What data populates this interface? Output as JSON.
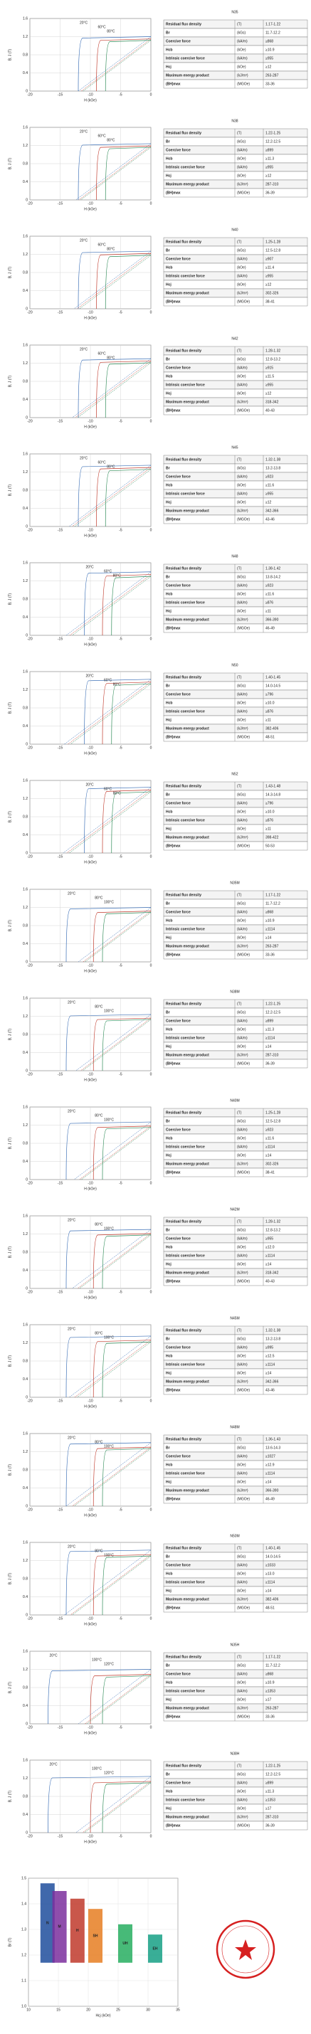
{
  "demag_axes": {
    "xlim": [
      -20,
      0
    ],
    "xticks": [
      -20,
      -15,
      -10,
      -5,
      0
    ],
    "ylim": [
      0,
      1.6
    ],
    "yticks": [
      0,
      0.4,
      0.8,
      1.2,
      1.6
    ],
    "xlabel": "H (kOe)",
    "ylabel": "B, J (T)"
  },
  "table_rows": [
    {
      "label": "Residual flux density",
      "unit": "(T)"
    },
    {
      "label": "Br",
      "unit": "(kGs)"
    },
    {
      "label": "Coercive force",
      "unit": "(kA/m)"
    },
    {
      "label": "Hcb",
      "unit": "(kOe)"
    },
    {
      "label": "Intrinsic coercive force",
      "unit": "(kA/m)"
    },
    {
      "label": "Hcj",
      "unit": "(kOe)"
    },
    {
      "label": "Maximum energy product",
      "unit": "(kJ/m³)"
    },
    {
      "label": "(BH)max",
      "unit": "(MGOe)"
    }
  ],
  "panels": [
    {
      "grade": "N35",
      "values": [
        "1.17-1.22",
        "11.7-12.2",
        "≥868",
        "≥10.9",
        "≥955",
        "≥12",
        "263-287",
        "33-36"
      ],
      "curves": [
        {
          "name": "20°C",
          "br": 1.2,
          "hcj": 12
        },
        {
          "name": "60°C",
          "br": 1.15,
          "hcj": 9
        },
        {
          "name": "80°C",
          "br": 1.12,
          "hcj": 7.5
        }
      ]
    },
    {
      "grade": "N38",
      "values": [
        "1.22-1.25",
        "12.2-12.5",
        "≥899",
        "≥11.3",
        "≥955",
        "≥12",
        "287-310",
        "36-39"
      ],
      "curves": [
        {
          "name": "20°C",
          "br": 1.24,
          "hcj": 12
        },
        {
          "name": "60°C",
          "br": 1.19,
          "hcj": 9
        },
        {
          "name": "80°C",
          "br": 1.16,
          "hcj": 7.5
        }
      ]
    },
    {
      "grade": "N40",
      "values": [
        "1.25-1.28",
        "12.5-12.8",
        "≥907",
        "≥11.4",
        "≥955",
        "≥12",
        "302-326",
        "38-41"
      ],
      "curves": [
        {
          "name": "20°C",
          "br": 1.27,
          "hcj": 12
        },
        {
          "name": "60°C",
          "br": 1.22,
          "hcj": 9
        },
        {
          "name": "80°C",
          "br": 1.18,
          "hcj": 7.5
        }
      ]
    },
    {
      "grade": "N42",
      "values": [
        "1.28-1.32",
        "12.8-13.2",
        "≥915",
        "≥11.5",
        "≥955",
        "≥12",
        "318-342",
        "40-43"
      ],
      "curves": [
        {
          "name": "20°C",
          "br": 1.3,
          "hcj": 12
        },
        {
          "name": "60°C",
          "br": 1.25,
          "hcj": 9
        },
        {
          "name": "80°C",
          "br": 1.21,
          "hcj": 7.5
        }
      ]
    },
    {
      "grade": "N45",
      "values": [
        "1.32-1.38",
        "13.2-13.8",
        "≥923",
        "≥11.6",
        "≥955",
        "≥12",
        "342-366",
        "43-46"
      ],
      "curves": [
        {
          "name": "20°C",
          "br": 1.35,
          "hcj": 12
        },
        {
          "name": "60°C",
          "br": 1.3,
          "hcj": 9
        },
        {
          "name": "80°C",
          "br": 1.26,
          "hcj": 7.5
        }
      ]
    },
    {
      "grade": "N48",
      "values": [
        "1.38-1.42",
        "13.8-14.2",
        "≥923",
        "≥11.6",
        "≥876",
        "≥11",
        "366-390",
        "46-49"
      ],
      "curves": [
        {
          "name": "20°C",
          "br": 1.4,
          "hcj": 11
        },
        {
          "name": "60°C",
          "br": 1.34,
          "hcj": 8
        },
        {
          "name": "80°C",
          "br": 1.3,
          "hcj": 6.5
        }
      ]
    },
    {
      "grade": "N50",
      "values": [
        "1.40-1.45",
        "14.0-14.5",
        "≥796",
        "≥10.0",
        "≥876",
        "≥11",
        "382-406",
        "48-51"
      ],
      "curves": [
        {
          "name": "20°C",
          "br": 1.43,
          "hcj": 11
        },
        {
          "name": "60°C",
          "br": 1.37,
          "hcj": 8
        },
        {
          "name": "80°C",
          "br": 1.33,
          "hcj": 6.5
        }
      ]
    },
    {
      "grade": "N52",
      "values": [
        "1.43-1.48",
        "14.3-14.8",
        "≥796",
        "≥10.0",
        "≥876",
        "≥11",
        "398-422",
        "50-53"
      ],
      "curves": [
        {
          "name": "20°C",
          "br": 1.45,
          "hcj": 11
        },
        {
          "name": "60°C",
          "br": 1.39,
          "hcj": 8
        },
        {
          "name": "80°C",
          "br": 1.35,
          "hcj": 6.5
        }
      ]
    },
    {
      "grade": "N35M",
      "values": [
        "1.17-1.22",
        "11.7-12.2",
        "≥868",
        "≥10.9",
        "≥1114",
        "≥14",
        "263-287",
        "33-36"
      ],
      "curves": [
        {
          "name": "20°C",
          "br": 1.2,
          "hcj": 14
        },
        {
          "name": "80°C",
          "br": 1.12,
          "hcj": 9.5
        },
        {
          "name": "100°C",
          "br": 1.09,
          "hcj": 8
        }
      ]
    },
    {
      "grade": "N38M",
      "values": [
        "1.22-1.25",
        "12.2-12.5",
        "≥899",
        "≥11.3",
        "≥1114",
        "≥14",
        "287-310",
        "36-39"
      ],
      "curves": [
        {
          "name": "20°C",
          "br": 1.24,
          "hcj": 14
        },
        {
          "name": "80°C",
          "br": 1.16,
          "hcj": 9.5
        },
        {
          "name": "100°C",
          "br": 1.13,
          "hcj": 8
        }
      ]
    },
    {
      "grade": "N40M",
      "values": [
        "1.25-1.28",
        "12.5-12.8",
        "≥923",
        "≥11.6",
        "≥1114",
        "≥14",
        "302-326",
        "38-41"
      ],
      "curves": [
        {
          "name": "20°C",
          "br": 1.27,
          "hcj": 14
        },
        {
          "name": "80°C",
          "br": 1.18,
          "hcj": 9.5
        },
        {
          "name": "100°C",
          "br": 1.15,
          "hcj": 8
        }
      ]
    },
    {
      "grade": "N42M",
      "values": [
        "1.28-1.32",
        "12.8-13.2",
        "≥955",
        "≥12.0",
        "≥1114",
        "≥14",
        "318-342",
        "40-43"
      ],
      "curves": [
        {
          "name": "20°C",
          "br": 1.3,
          "hcj": 14
        },
        {
          "name": "80°C",
          "br": 1.21,
          "hcj": 9.5
        },
        {
          "name": "100°C",
          "br": 1.18,
          "hcj": 8
        }
      ]
    },
    {
      "grade": "N45M",
      "values": [
        "1.32-1.38",
        "13.2-13.8",
        "≥995",
        "≥12.5",
        "≥1114",
        "≥14",
        "342-366",
        "43-46"
      ],
      "curves": [
        {
          "name": "20°C",
          "br": 1.35,
          "hcj": 14
        },
        {
          "name": "80°C",
          "br": 1.26,
          "hcj": 9.5
        },
        {
          "name": "100°C",
          "br": 1.22,
          "hcj": 8
        }
      ]
    },
    {
      "grade": "N48M",
      "values": [
        "1.36-1.43",
        "13.6-14.3",
        "≥1027",
        "≥12.9",
        "≥1114",
        "≥14",
        "366-390",
        "46-49"
      ],
      "curves": [
        {
          "name": "20°C",
          "br": 1.4,
          "hcj": 14
        },
        {
          "name": "80°C",
          "br": 1.3,
          "hcj": 9.5
        },
        {
          "name": "100°C",
          "br": 1.27,
          "hcj": 8
        }
      ]
    },
    {
      "grade": "N50M",
      "values": [
        "1.40-1.45",
        "14.0-14.5",
        "≥1033",
        "≥13.0",
        "≥1114",
        "≥14",
        "382-406",
        "48-51"
      ],
      "curves": [
        {
          "name": "20°C",
          "br": 1.43,
          "hcj": 14
        },
        {
          "name": "80°C",
          "br": 1.33,
          "hcj": 9.5
        },
        {
          "name": "100°C",
          "br": 1.3,
          "hcj": 8
        }
      ]
    },
    {
      "grade": "N35H",
      "values": [
        "1.17-1.22",
        "11.7-12.2",
        "≥868",
        "≥10.9",
        "≥1353",
        "≥17",
        "263-287",
        "33-36"
      ],
      "curves": [
        {
          "name": "20°C",
          "br": 1.2,
          "hcj": 17
        },
        {
          "name": "100°C",
          "br": 1.09,
          "hcj": 10
        },
        {
          "name": "120°C",
          "br": 1.06,
          "hcj": 8
        }
      ]
    },
    {
      "grade": "N38H",
      "values": [
        "1.22-1.25",
        "12.2-12.5",
        "≥899",
        "≥11.3",
        "≥1353",
        "≥17",
        "287-310",
        "36-39"
      ],
      "curves": [
        {
          "name": "20°C",
          "br": 1.24,
          "hcj": 17
        },
        {
          "name": "100°C",
          "br": 1.13,
          "hcj": 10
        },
        {
          "name": "120°C",
          "br": 1.1,
          "hcj": 8
        }
      ]
    }
  ],
  "grade_map": {
    "xlabel": "Hcj (kOe)",
    "ylabel": "Br (T)",
    "xlim": [
      10,
      35
    ],
    "xticks": [
      10,
      15,
      20,
      25,
      30,
      35
    ],
    "ylim": [
      1.0,
      1.5
    ],
    "yticks": [
      {
        "value": 1,
        "label": "1.0"
      },
      1.1,
      1.2,
      1.3,
      1.4,
      1.5
    ],
    "boxes": [
      {
        "name": "N",
        "hcj": 12,
        "br_low": 1.17,
        "br_high": 1.48,
        "color": "#1f4e9c"
      },
      {
        "name": "M",
        "hcj": 14,
        "br_low": 1.17,
        "br_high": 1.45,
        "color": "#7b2f9e"
      },
      {
        "name": "H",
        "hcj": 17,
        "br_low": 1.17,
        "br_high": 1.42,
        "color": "#c0392b"
      },
      {
        "name": "SH",
        "hcj": 20,
        "br_low": 1.17,
        "br_high": 1.38,
        "color": "#e67e22"
      },
      {
        "name": "UH",
        "hcj": 25,
        "br_low": 1.17,
        "br_high": 1.32,
        "color": "#27ae60"
      },
      {
        "name": "EH",
        "hcj": 30,
        "br_low": 1.17,
        "br_high": 1.28,
        "color": "#16a085"
      }
    ]
  }
}
